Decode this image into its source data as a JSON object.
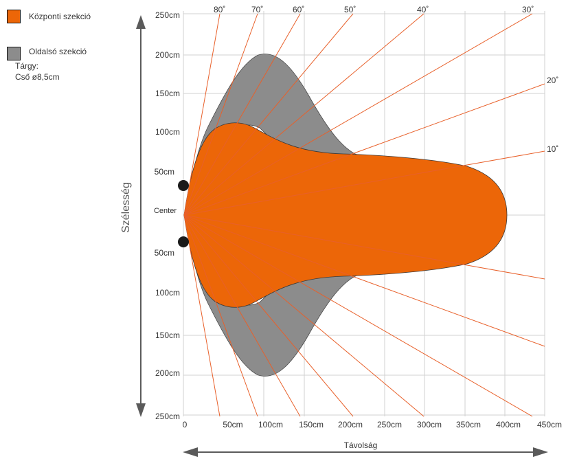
{
  "legend": [
    {
      "label": "Központi szekció",
      "color": "#ec6608"
    },
    {
      "label": "Oldalsó szekció",
      "color": "#8c8c8c"
    }
  ],
  "object": {
    "label": "Tárgy:",
    "value": "Cső ø8,5cm"
  },
  "axes": {
    "width_label": "Szélesség",
    "distance_label": "Távolság",
    "center_label": "Center",
    "y_top_labels": [
      "250cm",
      "200cm",
      "150cm",
      "100cm",
      "50cm"
    ],
    "y_bottom_labels": [
      "50cm",
      "100cm",
      "150cm",
      "200cm",
      "250cm"
    ],
    "x_labels": [
      "0",
      "50cm",
      "100cm",
      "150cm",
      "200cm",
      "250cm",
      "300cm",
      "350cm",
      "400cm",
      "450cm"
    ]
  },
  "angles": [
    "80˚",
    "70˚",
    "60˚",
    "50˚",
    "40˚",
    "30˚",
    "20˚",
    "10˚"
  ],
  "colors": {
    "central": "#ec6608",
    "side": "#8c8c8c",
    "ray": "#e8602a",
    "axis": "#5a5a5a",
    "grid": "#d0d0d0",
    "sensor": "#1a1a1a"
  }
}
